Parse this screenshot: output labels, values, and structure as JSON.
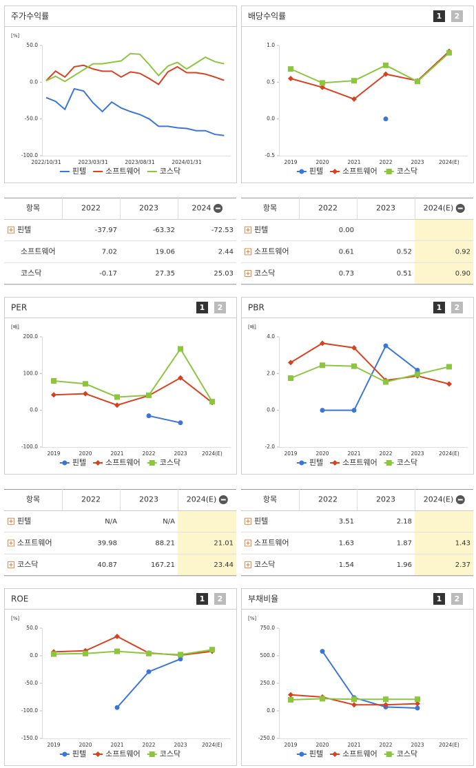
{
  "chart_data": [
    {
      "type": "line",
      "title": "주가수익률",
      "unit": "[%]",
      "markers": false,
      "categories": [
        "2022/10/31",
        null,
        null,
        null,
        null,
        "2023/03/31",
        null,
        null,
        null,
        null,
        "2023/08/31",
        null,
        null,
        null,
        null,
        "2024/01/31",
        null,
        null,
        null,
        null
      ],
      "ylim": [
        -100,
        50
      ],
      "yticks": [
        {
          "value": 50,
          "label": "50.0"
        },
        {
          "value": 0,
          "label": "0.0"
        },
        {
          "value": -50,
          "label": "-50.0"
        },
        {
          "value": -100,
          "label": "-100.0"
        }
      ],
      "series": [
        {
          "name": "핀텔",
          "color": "#3a76d8",
          "values": [
            -21,
            -26,
            -37,
            -9,
            -12,
            -28,
            -40,
            -27,
            -35,
            -40,
            -44,
            -50,
            -60,
            -60,
            -62,
            -63,
            -66,
            -66,
            -71,
            -72.53
          ]
        },
        {
          "name": "소프트웨어",
          "color": "#d9401e",
          "values": [
            2,
            15,
            7,
            21,
            23,
            18,
            15,
            15,
            7,
            14,
            12,
            5,
            -3,
            14,
            21,
            13,
            13,
            11,
            7,
            2.44
          ]
        },
        {
          "name": "코스닥",
          "color": "#8cc63f",
          "values": [
            2,
            8,
            1,
            9,
            17,
            25,
            25,
            27,
            29,
            39,
            38,
            24,
            9,
            22,
            27,
            18,
            26,
            34,
            28,
            25.03
          ]
        }
      ]
    },
    {
      "type": "line",
      "title": "배당수익률",
      "buttons": [
        "1",
        "2"
      ],
      "markers": true,
      "categories": [
        "2019",
        "2020",
        "2021",
        "2022",
        "2023",
        "2024(E)"
      ],
      "ylim": [
        -0.5,
        1
      ],
      "yticks": [
        {
          "value": 1,
          "label": "1.0"
        },
        0.5,
        {
          "value": 0,
          "label": "0.0"
        },
        -0.5
      ],
      "series": [
        {
          "name": "핀텔",
          "color": "#3a76d8",
          "marker": "circle",
          "values": [
            null,
            null,
            null,
            0,
            null,
            null
          ]
        },
        {
          "name": "소프트웨어",
          "color": "#d9401e",
          "marker": "diamond",
          "values": [
            0.55,
            0.43,
            0.27,
            0.61,
            0.52,
            0.92
          ]
        },
        {
          "name": "코스닥",
          "color": "#8cc63f",
          "marker": "square",
          "values": [
            0.68,
            0.49,
            0.52,
            0.73,
            0.51,
            0.9
          ]
        }
      ]
    },
    {
      "type": "line",
      "title": "PER",
      "buttons": [
        "1",
        "2"
      ],
      "unit": "[배]",
      "markers": true,
      "categories": [
        "2019",
        "2020",
        "2021",
        "2022",
        "2023",
        "2024(E)"
      ],
      "ylim": [
        -100,
        200
      ],
      "yticks": [
        {
          "value": 200,
          "label": "200.0"
        },
        {
          "value": 100,
          "label": "100.0"
        },
        {
          "value": 0,
          "label": "0.0"
        },
        {
          "value": -100,
          "label": "-100.0"
        }
      ],
      "series": [
        {
          "name": "핀텔",
          "color": "#3a76d8",
          "marker": "circle",
          "values": [
            null,
            null,
            null,
            -15,
            -34,
            null
          ]
        },
        {
          "name": "소프트웨어",
          "color": "#d9401e",
          "marker": "diamond",
          "values": [
            42,
            45,
            14,
            39.98,
            88.21,
            21.01
          ]
        },
        {
          "name": "코스닥",
          "color": "#8cc63f",
          "marker": "square",
          "values": [
            80,
            72,
            36,
            40.87,
            167.21,
            23.44
          ]
        }
      ]
    },
    {
      "type": "line",
      "title": "PBR",
      "buttons": [
        "1",
        "2"
      ],
      "unit": "[배]",
      "markers": true,
      "categories": [
        "2019",
        "2020",
        "2021",
        "2022",
        "2023",
        "2024(E)"
      ],
      "ylim": [
        -2,
        4
      ],
      "yticks": [
        {
          "value": 4,
          "label": "4.0"
        },
        {
          "value": 2,
          "label": "2.0"
        },
        {
          "value": 0,
          "label": "0.0"
        },
        {
          "value": -2,
          "label": "-2.0"
        }
      ],
      "series": [
        {
          "name": "핀텔",
          "color": "#3a76d8",
          "marker": "circle",
          "values": [
            null,
            0,
            0,
            3.51,
            2.18,
            null
          ]
        },
        {
          "name": "소프트웨어",
          "color": "#d9401e",
          "marker": "diamond",
          "values": [
            2.6,
            3.65,
            3.4,
            1.63,
            1.87,
            1.43
          ]
        },
        {
          "name": "코스닥",
          "color": "#8cc63f",
          "marker": "square",
          "values": [
            1.75,
            2.45,
            2.4,
            1.54,
            1.96,
            2.37
          ]
        }
      ]
    },
    {
      "type": "line",
      "title": "ROE",
      "buttons": [
        "1",
        "2"
      ],
      "unit": "[%]",
      "markers": true,
      "categories": [
        "2019",
        "2020",
        "2021",
        "2022",
        "2023",
        "2024(E)"
      ],
      "ylim": [
        -150,
        50
      ],
      "yticks": [
        {
          "value": 50,
          "label": "50.0"
        },
        {
          "value": 0,
          "label": "0.0"
        },
        {
          "value": -50,
          "label": "-50.0"
        },
        {
          "value": -100,
          "label": "-100.0"
        },
        {
          "value": -150,
          "label": "-150.0"
        }
      ],
      "series": [
        {
          "name": "핀텔",
          "color": "#3a76d8",
          "marker": "circle",
          "values": [
            null,
            null,
            -94,
            -29,
            -6,
            null
          ]
        },
        {
          "name": "소프트웨어",
          "color": "#d9401e",
          "marker": "diamond",
          "values": [
            7,
            9,
            35,
            5,
            1,
            8
          ]
        },
        {
          "name": "코스닥",
          "color": "#8cc63f",
          "marker": "square",
          "values": [
            3,
            4,
            8,
            4,
            2,
            11
          ]
        }
      ]
    },
    {
      "type": "line",
      "title": "부채비율",
      "buttons": [
        "1",
        "2"
      ],
      "unit": "[%]",
      "markers": true,
      "categories": [
        "2019",
        "2020",
        "2021",
        "2022",
        "2023",
        "2024(E)"
      ],
      "ylim": [
        -250,
        750
      ],
      "yticks": [
        {
          "value": 750,
          "label": "750.0"
        },
        {
          "value": 500,
          "label": "500.0"
        },
        {
          "value": 250,
          "label": "250.0"
        },
        {
          "value": 0,
          "label": "0.0"
        },
        {
          "value": -250,
          "label": "-250.0"
        }
      ],
      "series": [
        {
          "name": "핀텔",
          "color": "#3a76d8",
          "marker": "circle",
          "values": [
            null,
            540,
            120,
            35,
            25,
            null
          ]
        },
        {
          "name": "소프트웨어",
          "color": "#d9401e",
          "marker": "diamond",
          "values": [
            145,
            125,
            55,
            55,
            65,
            null
          ]
        },
        {
          "name": "코스닥",
          "color": "#8cc63f",
          "marker": "square",
          "values": [
            100,
            110,
            105,
            105,
            105,
            null
          ]
        }
      ]
    }
  ],
  "tables": [
    {
      "header": [
        "항목",
        "2022",
        "2023",
        "2024"
      ],
      "expand": [
        true,
        false,
        false
      ],
      "rows": [
        [
          "핀텔",
          "-37.97",
          "-63.32",
          "-72.53"
        ],
        [
          "소프트웨어",
          "7.02",
          "19.06",
          "2.44"
        ],
        [
          "코스닥",
          "-0.17",
          "27.35",
          "25.03"
        ]
      ]
    },
    {
      "header": [
        "항목",
        "2022",
        "2023",
        "2024(E)"
      ],
      "expand": [
        true,
        true,
        true
      ],
      "highlight_column": 3,
      "rows": [
        [
          "핀텔",
          "0.00",
          null,
          null
        ],
        [
          "소프트웨어",
          "0.61",
          "0.52",
          "0.92"
        ],
        [
          "코스닥",
          "0.73",
          "0.51",
          "0.90"
        ]
      ]
    },
    {
      "header": [
        "항목",
        "2022",
        "2023",
        "2024(E)"
      ],
      "expand": [
        true,
        true,
        true
      ],
      "highlight_column": 3,
      "rows": [
        [
          "핀텔",
          "N/A",
          "N/A",
          null
        ],
        [
          "소프트웨어",
          "39.98",
          "88.21",
          "21.01"
        ],
        [
          "코스닥",
          "40.87",
          "167.21",
          "23.44"
        ]
      ]
    },
    {
      "header": [
        "항목",
        "2022",
        "2023",
        "2024(E)"
      ],
      "expand": [
        true,
        true,
        true
      ],
      "highlight_column": 3,
      "rows": [
        [
          "핀텔",
          "3.51",
          "2.18",
          null
        ],
        [
          "소프트웨어",
          "1.63",
          "1.87",
          "1.43"
        ],
        [
          "코스닥",
          "1.54",
          "1.96",
          "2.37"
        ]
      ]
    }
  ]
}
